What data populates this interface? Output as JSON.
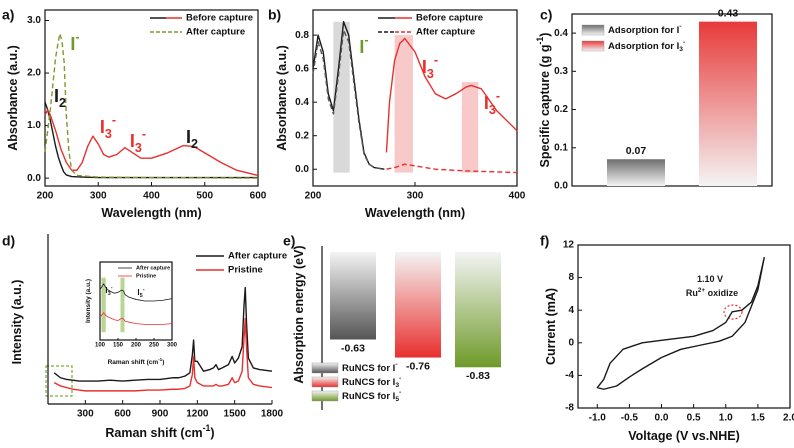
{
  "chart_data": [
    {
      "type": "line",
      "label": "a)",
      "xlabel": "Wavelength (nm)",
      "ylabel": "Absorbance (a.u.)",
      "xlim": [
        200,
        600
      ],
      "ylim": [
        -0.15,
        3.2
      ],
      "xticks": [
        200,
        300,
        400,
        500,
        600
      ],
      "yticks": [
        {
          "value": 0,
          "label": "0.0"
        },
        {
          "value": 1,
          "label": "1.0"
        },
        {
          "value": 2,
          "label": "2.0"
        },
        {
          "value": 3,
          "label": "3.0"
        }
      ],
      "series": [
        {
          "color": "#1a1a1a",
          "x": [
            200,
            205,
            210,
            215,
            220,
            225,
            230,
            235,
            240,
            250,
            270,
            300,
            400,
            500,
            600
          ],
          "values": [
            1.45,
            1.3,
            1.1,
            0.85,
            0.6,
            0.4,
            0.25,
            0.12,
            0.06,
            0.03,
            0.02,
            0.01,
            0.01,
            0.01,
            0.01
          ]
        },
        {
          "color": "#e8302f",
          "x": [
            200,
            205,
            210,
            220,
            230,
            240,
            250,
            260,
            270,
            280,
            290,
            300,
            310,
            320,
            335,
            350,
            365,
            380,
            400,
            430,
            460,
            480,
            500,
            530,
            560,
            600
          ],
          "values": [
            1.2,
            1.3,
            1.2,
            0.9,
            0.55,
            0.3,
            0.15,
            0.15,
            0.3,
            0.6,
            0.8,
            0.65,
            0.45,
            0.4,
            0.45,
            0.58,
            0.48,
            0.38,
            0.38,
            0.48,
            0.62,
            0.6,
            0.48,
            0.3,
            0.15,
            0.05
          ]
        },
        {
          "color": "#7f9a2d",
          "dash": true,
          "x": [
            200,
            205,
            210,
            215,
            220,
            225,
            228,
            232,
            236,
            240,
            245,
            250,
            260,
            300,
            400,
            600
          ],
          "values": [
            0.5,
            0.9,
            1.3,
            1.8,
            2.3,
            2.6,
            2.75,
            2.6,
            2.2,
            1.2,
            0.5,
            0.15,
            0.05,
            0.02,
            0.01,
            0.0
          ]
        }
      ],
      "legend": [
        {
          "name": "Before capture",
          "colors": [
            "#1a1a1a",
            "#e8302f"
          ]
        },
        {
          "name": "After capture",
          "colors": [
            "#7f9a2d"
          ],
          "dash": true
        }
      ],
      "annotations": [
        {
          "text": "I",
          "sup": "-",
          "color": "#6f9a2a"
        },
        {
          "text": "I",
          "sub": "2",
          "color": "#1a1a1a"
        },
        {
          "text": "I",
          "sub": "3",
          "sup": "-",
          "color": "#e8302f"
        },
        {
          "text": "I",
          "sub": "3",
          "sup": "-",
          "color": "#e8302f"
        },
        {
          "text": "I",
          "sub": "2",
          "color": "#1a1a1a"
        }
      ]
    },
    {
      "type": "line",
      "label": "b)",
      "xlabel": "Wavelength (nm)",
      "ylabel": "Absorbance (a.u.)",
      "xlim": [
        200,
        400
      ],
      "ylim": [
        -0.1,
        0.95
      ],
      "xticks": [
        200,
        300,
        400
      ],
      "yticks": [
        {
          "value": 0,
          "label": "0.0"
        },
        0.2,
        0.4,
        0.6,
        0.8
      ],
      "highlights": [
        {
          "xlim": [
            220,
            236
          ],
          "ylim": [
            -0.02,
            0.88
          ],
          "color": "#cfcfcf"
        },
        {
          "xlim": [
            280,
            298
          ],
          "ylim": [
            -0.02,
            0.8
          ],
          "color": "#f6bcbc"
        },
        {
          "xlim": [
            346,
            362
          ],
          "ylim": [
            -0.02,
            0.52
          ],
          "color": "#f6bcbc"
        }
      ],
      "series": [
        {
          "color": "#1a1a1a",
          "x": [
            200,
            205,
            210,
            215,
            220,
            225,
            230,
            235,
            240,
            245,
            250,
            255,
            260,
            270
          ],
          "values": [
            0.6,
            0.8,
            0.7,
            0.45,
            0.35,
            0.6,
            0.88,
            0.8,
            0.55,
            0.3,
            0.1,
            0.03,
            0.01,
            0.0
          ]
        },
        {
          "color": "#555555",
          "dash": true,
          "x": [
            200,
            205,
            210,
            215,
            220,
            225,
            230,
            235,
            240,
            245,
            250,
            255,
            260,
            270
          ],
          "values": [
            0.57,
            0.76,
            0.66,
            0.42,
            0.33,
            0.56,
            0.83,
            0.76,
            0.52,
            0.28,
            0.09,
            0.03,
            0.01,
            0.0
          ]
        },
        {
          "color": "#e8302f",
          "x": [
            272,
            275,
            280,
            285,
            290,
            300,
            310,
            320,
            330,
            340,
            350,
            355,
            365,
            380,
            400
          ],
          "values": [
            0.1,
            0.4,
            0.65,
            0.75,
            0.78,
            0.7,
            0.55,
            0.45,
            0.42,
            0.45,
            0.49,
            0.5,
            0.48,
            0.35,
            0.23
          ]
        },
        {
          "color": "#e8302f",
          "dash": true,
          "x": [
            272,
            280,
            290,
            300,
            320,
            350,
            400
          ],
          "values": [
            0.0,
            0.01,
            0.03,
            0.02,
            0.0,
            -0.01,
            -0.02
          ]
        }
      ],
      "legend": [
        {
          "name": "Before capture",
          "colors": [
            "#1a1a1a",
            "#e8302f"
          ]
        },
        {
          "name": "After capture",
          "colors": [
            "#1a1a1a",
            "#e8302f"
          ],
          "dash": true
        }
      ],
      "annotations": [
        {
          "text": "I",
          "sup": "-",
          "color": "#6f9a2a"
        },
        {
          "text": "I",
          "sub": "3",
          "sup": "-",
          "color": "#e8302f"
        },
        {
          "text": "I",
          "sub": "3",
          "sup": "-",
          "color": "#e8302f"
        }
      ]
    },
    {
      "type": "bar",
      "label": "c)",
      "ylabel": {
        "text": "Specific capture (g g",
        "sup": "-1",
        "after": ")"
      },
      "ylim": [
        0,
        0.45
      ],
      "yticks": [
        {
          "value": 0,
          "label": "0.0"
        },
        0.1,
        0.2,
        0.3,
        0.4
      ],
      "values": [
        0.07,
        0.43
      ],
      "colors": [
        "#6e6e6e",
        "#e83a3a"
      ],
      "legend": [
        {
          "text": "Adsorption for I",
          "sup": "-"
        },
        {
          "text": "Adsorption for I",
          "sub": "3",
          "sup": "-"
        }
      ]
    },
    {
      "type": "line",
      "label": "d)",
      "xlabel": {
        "text": "Raman shift (cm",
        "sup": "-1",
        "after": ")"
      },
      "ylabel": "Intensity (a.u.)",
      "xlim": [
        0,
        1800
      ],
      "ylim": [
        0,
        10
      ],
      "xticks": [
        300,
        600,
        900,
        1200,
        1500,
        1800
      ],
      "series": [
        {
          "color": "#1a1a1a",
          "x": [
            50,
            100,
            150,
            200,
            250,
            300,
            400,
            500,
            600,
            700,
            800,
            900,
            1000,
            1050,
            1100,
            1140,
            1160,
            1170,
            1180,
            1200,
            1250,
            1300,
            1330,
            1350,
            1370,
            1400,
            1450,
            1480,
            1500,
            1530,
            1560,
            1575,
            1585,
            1595,
            1610,
            1650,
            1700,
            1800
          ],
          "values": [
            1.9,
            1.6,
            1.5,
            1.45,
            1.4,
            1.4,
            1.4,
            1.45,
            1.4,
            1.45,
            1.5,
            1.5,
            1.6,
            1.6,
            1.7,
            1.9,
            3.0,
            3.9,
            2.6,
            2.6,
            2.0,
            2.1,
            2.2,
            2.4,
            2.1,
            2.2,
            2.4,
            2.9,
            2.5,
            2.8,
            3.5,
            6.0,
            7.1,
            5.0,
            2.8,
            2.2,
            2.1,
            2.0
          ]
        },
        {
          "color": "#e8302f",
          "x": [
            50,
            100,
            150,
            200,
            250,
            300,
            400,
            500,
            600,
            700,
            800,
            900,
            1000,
            1050,
            1100,
            1140,
            1160,
            1170,
            1180,
            1200,
            1250,
            1300,
            1330,
            1350,
            1370,
            1400,
            1450,
            1480,
            1500,
            1530,
            1560,
            1575,
            1585,
            1595,
            1610,
            1650,
            1700,
            1800
          ],
          "values": [
            1.3,
            1.1,
            1.0,
            0.9,
            0.85,
            0.8,
            0.8,
            0.8,
            0.8,
            0.8,
            0.85,
            0.85,
            0.9,
            0.9,
            0.95,
            1.1,
            1.8,
            2.9,
            1.6,
            1.3,
            1.1,
            1.1,
            1.1,
            1.2,
            1.1,
            1.1,
            1.2,
            1.6,
            1.3,
            1.4,
            2.0,
            4.0,
            5.2,
            3.5,
            1.6,
            1.2,
            1.1,
            1.0
          ]
        }
      ],
      "legend": [
        {
          "name": "After capture",
          "colors": [
            "#1a1a1a"
          ]
        },
        {
          "name": "Pristine",
          "colors": [
            "#e8302f"
          ]
        }
      ]
    },
    {
      "type": "line",
      "xlabel": {
        "text": "Raman shift (cm",
        "sup": "-1",
        "after": ")"
      },
      "ylabel": "Intensity (a.u.)",
      "xlim": [
        100,
        300
      ],
      "ylim": [
        0,
        10
      ],
      "xticks": [
        100,
        150,
        200,
        250,
        300
      ],
      "highlights": [
        {
          "xlim": [
            104,
            116
          ],
          "ylim": [
            1,
            8
          ],
          "color": "#a9c97a"
        },
        {
          "xlim": [
            157,
            168
          ],
          "ylim": [
            1,
            8
          ],
          "color": "#a9c97a"
        }
      ],
      "series": [
        {
          "color": "#1a1a1a",
          "x": [
            100,
            105,
            110,
            115,
            120,
            130,
            140,
            150,
            160,
            165,
            170,
            180,
            200,
            225,
            250,
            275,
            300
          ],
          "values": [
            6.5,
            6.8,
            7.2,
            6.8,
            6.5,
            6.2,
            6.0,
            6.1,
            6.4,
            6.3,
            5.8,
            5.5,
            5.2,
            5.0,
            5.0,
            5.1,
            5.3
          ]
        },
        {
          "color": "#e8302f",
          "x": [
            100,
            105,
            110,
            115,
            120,
            130,
            140,
            150,
            160,
            165,
            170,
            180,
            200,
            225,
            250,
            275,
            300
          ],
          "values": [
            3.0,
            3.2,
            3.5,
            3.2,
            3.0,
            2.8,
            2.6,
            2.5,
            2.8,
            2.7,
            2.4,
            2.3,
            2.1,
            2.0,
            2.0,
            2.0,
            2.1
          ]
        }
      ],
      "legend": [
        {
          "name": "After capture",
          "colors": [
            "#1a1a1a"
          ]
        },
        {
          "name": "Pristine",
          "colors": [
            "#e8302f"
          ]
        }
      ],
      "annotations": [
        {
          "text": "I",
          "sub": "3",
          "sup": "-",
          "color": "#1a1a1a"
        },
        {
          "text": "I",
          "sub": "5",
          "sup": "-",
          "color": "#1a1a1a"
        }
      ]
    },
    {
      "type": "bar",
      "label": "e)",
      "ylabel": "Absorption energy (eV)",
      "ylim": [
        -0.9,
        0
      ],
      "values": [
        -0.63,
        -0.76,
        -0.83
      ],
      "colors": [
        "#555555",
        "#e8302f",
        "#6f9a2a"
      ],
      "legend": [
        {
          "text": "RuNCS for I",
          "sup": "-"
        },
        {
          "text": "RuNCS for I",
          "sub": "3",
          "sup": "-"
        },
        {
          "text": "RuNCS for I",
          "sub": "5",
          "sup": "-"
        }
      ]
    },
    {
      "type": "line",
      "label": "f)",
      "xlabel": "Voltage (V vs.NHE)",
      "ylabel": "Current (mA)",
      "xlim": [
        -1.3,
        2.0
      ],
      "ylim": [
        -8,
        12
      ],
      "xticks": [
        {
          "value": -1,
          "label": "-1.0"
        },
        -0.5,
        {
          "value": 0,
          "label": "0.0"
        },
        0.5,
        {
          "value": 1,
          "label": "1.0"
        },
        1.5,
        {
          "value": 2,
          "label": "2.0"
        }
      ],
      "yticks": [
        -8,
        -4,
        0,
        4,
        8,
        12
      ],
      "series": [
        {
          "color": "#1a1a1a",
          "x": [
            1.6,
            1.5,
            1.4,
            1.25,
            1.1,
            1.0,
            0.8,
            0.5,
            0.0,
            -0.3,
            -0.6,
            -0.8,
            -0.9,
            -1.0,
            -0.9,
            -0.7,
            -0.5,
            -0.3,
            0.0,
            0.3,
            0.6,
            0.9,
            1.1,
            1.3,
            1.5,
            1.6
          ],
          "values": [
            10.5,
            7,
            5,
            4,
            3.8,
            2.5,
            1.5,
            0.8,
            0.3,
            0,
            -0.8,
            -2.5,
            -4.5,
            -5.5,
            -5.7,
            -5.3,
            -4.2,
            -3.2,
            -1.8,
            -0.8,
            -0.3,
            0.2,
            0.8,
            2.5,
            6.5,
            10.5
          ]
        }
      ],
      "annotations": [
        {
          "text": "1.10 V",
          "color": "#1a1a1a"
        },
        {
          "text": "Ru",
          "sup": "2+",
          "after": " oxidize",
          "color": "#1a1a1a"
        }
      ]
    }
  ]
}
